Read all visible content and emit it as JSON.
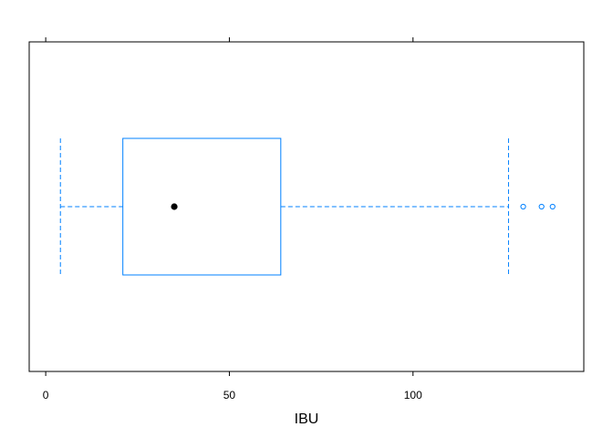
{
  "chart_data": {
    "type": "boxplot",
    "orientation": "horizontal",
    "xlabel": "IBU",
    "xlim": [
      -4.5,
      146.5
    ],
    "ticks": [
      0,
      50,
      100
    ],
    "tick_labels": [
      "0",
      "50",
      "100"
    ],
    "ticks_on_top": true,
    "grid": false,
    "box": {
      "whisker_low": 4,
      "q1": 21,
      "median": 35,
      "q3": 64,
      "whisker_high": 126,
      "outliers": [
        130,
        135,
        138
      ]
    },
    "colors": {
      "box": "#0080ff",
      "whisker": "#0080ff",
      "outlier": "#0080ff",
      "median_dot": "#000000",
      "axis": "#000000"
    }
  }
}
